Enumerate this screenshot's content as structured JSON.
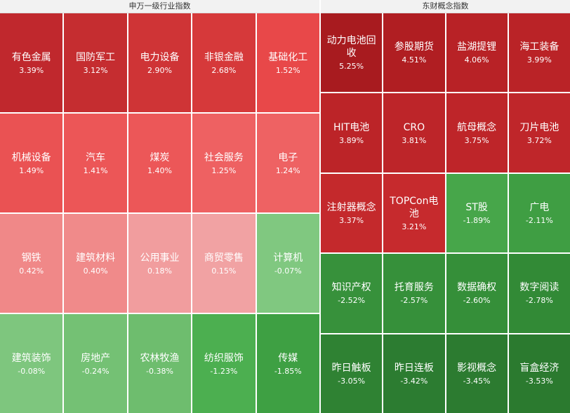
{
  "panels": [
    {
      "title": "申万一级行业指数",
      "tiles": [
        {
          "name": "有色金属",
          "change": "3.39%",
          "color": "#c0282d"
        },
        {
          "name": "国防军工",
          "change": "3.12%",
          "color": "#c52d30"
        },
        {
          "name": "电力设备",
          "change": "2.90%",
          "color": "#cf3436"
        },
        {
          "name": "非银金融",
          "change": "2.68%",
          "color": "#d6393a"
        },
        {
          "name": "基础化工",
          "change": "1.52%",
          "color": "#e84849"
        },
        {
          "name": "机械设备",
          "change": "1.49%",
          "color": "#ea5253"
        },
        {
          "name": "汽车",
          "change": "1.41%",
          "color": "#ec5657"
        },
        {
          "name": "煤炭",
          "change": "1.40%",
          "color": "#ec5758"
        },
        {
          "name": "社会服务",
          "change": "1.25%",
          "color": "#ee6162"
        },
        {
          "name": "电子",
          "change": "1.24%",
          "color": "#ee6263"
        },
        {
          "name": "钢铁",
          "change": "0.42%",
          "color": "#f08888"
        },
        {
          "name": "建筑材料",
          "change": "0.40%",
          "color": "#f08a8a"
        },
        {
          "name": "公用事业",
          "change": "0.18%",
          "color": "#f19d9e"
        },
        {
          "name": "商贸零售",
          "change": "0.15%",
          "color": "#f1a2a3"
        },
        {
          "name": "计算机",
          "change": "-0.07%",
          "color": "#80c880"
        },
        {
          "name": "建筑装饰",
          "change": "-0.08%",
          "color": "#7ec67e"
        },
        {
          "name": "房地产",
          "change": "-0.24%",
          "color": "#74c174"
        },
        {
          "name": "农林牧渔",
          "change": "-0.38%",
          "color": "#6ebd6e"
        },
        {
          "name": "纺织服饰",
          "change": "-1.23%",
          "color": "#4caf50"
        },
        {
          "name": "传媒",
          "change": "-1.85%",
          "color": "#3ea043"
        }
      ]
    },
    {
      "title": "东财概念指数",
      "tiles": [
        {
          "name": "动力电池回收",
          "change": "5.25%",
          "color": "#a81b1f"
        },
        {
          "name": "参股期货",
          "change": "4.51%",
          "color": "#b01e22"
        },
        {
          "name": "盐湖提锂",
          "change": "4.06%",
          "color": "#b82226"
        },
        {
          "name": "海工装备",
          "change": "3.99%",
          "color": "#ba2327"
        },
        {
          "name": "HIT电池",
          "change": "3.89%",
          "color": "#bc2428"
        },
        {
          "name": "CRO",
          "change": "3.81%",
          "color": "#bd2529"
        },
        {
          "name": "航母概念",
          "change": "3.75%",
          "color": "#be2529"
        },
        {
          "name": "刀片电池",
          "change": "3.72%",
          "color": "#bf262a"
        },
        {
          "name": "注射器概念",
          "change": "3.37%",
          "color": "#c4292c"
        },
        {
          "name": "TOPCon电池",
          "change": "3.21%",
          "color": "#c62a2d"
        },
        {
          "name": "ST股",
          "change": "-1.89%",
          "color": "#47a64a"
        },
        {
          "name": "广电",
          "change": "-2.11%",
          "color": "#3f9e43"
        },
        {
          "name": "知识产权",
          "change": "-2.52%",
          "color": "#37913b"
        },
        {
          "name": "托育服务",
          "change": "-2.57%",
          "color": "#36903a"
        },
        {
          "name": "数据确权",
          "change": "-2.60%",
          "color": "#358f39"
        },
        {
          "name": "数字阅读",
          "change": "-2.78%",
          "color": "#328a36"
        },
        {
          "name": "昨日触板",
          "change": "-3.05%",
          "color": "#2f8233"
        },
        {
          "name": "昨日连板",
          "change": "-3.42%",
          "color": "#2c7c31"
        },
        {
          "name": "影视概念",
          "change": "-3.45%",
          "color": "#2c7b30"
        },
        {
          "name": "盲盒经济",
          "change": "-3.53%",
          "color": "#2b7a2f"
        }
      ]
    }
  ]
}
